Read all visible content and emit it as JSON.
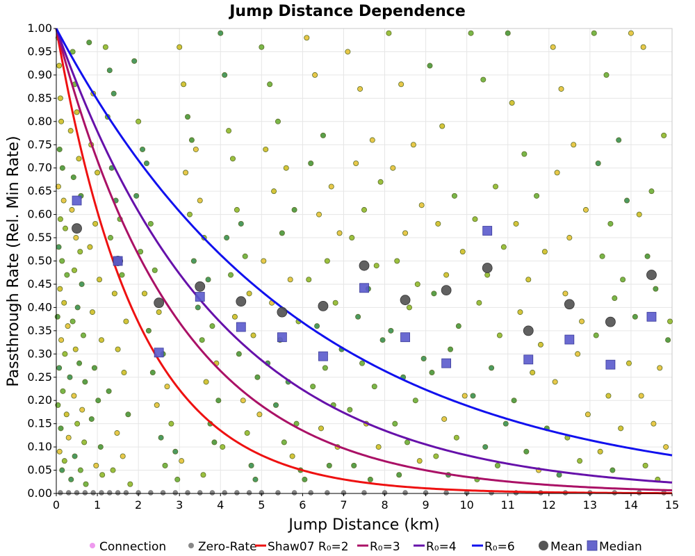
{
  "chart_data": {
    "type": "scatter",
    "title": "Jump Distance Dependence",
    "xlabel": "Jump Distance (km)",
    "ylabel": "Passthrough Rate (Rel. Min Rate)",
    "xlim": [
      0,
      15
    ],
    "ylim": [
      0,
      1
    ],
    "xticks": [
      0,
      1,
      2,
      3,
      4,
      5,
      6,
      7,
      8,
      9,
      10,
      11,
      12,
      13,
      14,
      15
    ],
    "xtick_labels": [
      "0",
      "1",
      "2",
      "3",
      "4",
      "5",
      "6",
      "7",
      "8",
      "9",
      "10",
      "11",
      "12",
      "13",
      "14",
      "15"
    ],
    "yticks": [
      0,
      0.05,
      0.1,
      0.15,
      0.2,
      0.25,
      0.3,
      0.35,
      0.4,
      0.45,
      0.5,
      0.55,
      0.6,
      0.65,
      0.7,
      0.75,
      0.8,
      0.85,
      0.9,
      0.95,
      1.0
    ],
    "ytick_labels": [
      "0.00",
      "0.05",
      "0.10",
      "0.15",
      "0.20",
      "0.25",
      "0.30",
      "0.35",
      "0.40",
      "0.45",
      "0.50",
      "0.55",
      "0.60",
      "0.65",
      "0.70",
      "0.75",
      "0.80",
      "0.85",
      "0.90",
      "0.95",
      "1.00"
    ],
    "grid": true,
    "legend_position": "bottom",
    "legend": [
      {
        "label": "Connection",
        "kind": "dot",
        "color": "#ee99ee"
      },
      {
        "label": "Zero-Rate",
        "kind": "dot",
        "color": "#888888"
      },
      {
        "label": "Shaw07 R₀=2",
        "kind": "line",
        "color": "#ee1111"
      },
      {
        "label": "R₀=3",
        "kind": "line",
        "color": "#aa1166"
      },
      {
        "label": "R₀=4",
        "kind": "line",
        "color": "#6611aa"
      },
      {
        "label": "R₀=6",
        "kind": "line",
        "color": "#1111ee"
      },
      {
        "label": "Mean",
        "kind": "circle",
        "color": "#555555"
      },
      {
        "label": "Median",
        "kind": "square",
        "color": "#6666cc"
      }
    ],
    "curves": [
      {
        "name": "Shaw07 R₀=2",
        "R0": 2,
        "color": "#ee1111",
        "formula": "exp(-x/R0)"
      },
      {
        "name": "R₀=3",
        "R0": 3,
        "color": "#aa1166",
        "formula": "exp(-x/R0)"
      },
      {
        "name": "R₀=4",
        "R0": 4,
        "color": "#6611aa",
        "formula": "exp(-x/R0)"
      },
      {
        "name": "R₀=6",
        "R0": 6,
        "color": "#1111ee",
        "formula": "exp(-x/R0)"
      }
    ],
    "mean": {
      "x": [
        0.5,
        1.5,
        2.5,
        3.5,
        4.5,
        5.5,
        6.5,
        7.5,
        8.5,
        9.5,
        10.5,
        11.5,
        12.5,
        13.5,
        14.5
      ],
      "y": [
        0.57,
        0.5,
        0.41,
        0.445,
        0.413,
        0.39,
        0.403,
        0.49,
        0.416,
        0.437,
        0.485,
        0.35,
        0.407,
        0.369,
        0.47
      ]
    },
    "median": {
      "x": [
        0.5,
        1.5,
        2.5,
        3.5,
        4.5,
        5.5,
        6.5,
        7.5,
        8.5,
        9.5,
        10.5,
        11.5,
        12.5,
        13.5,
        14.5
      ],
      "y": [
        0.63,
        0.5,
        0.303,
        0.423,
        0.358,
        0.336,
        0.295,
        0.442,
        0.336,
        0.28,
        0.565,
        0.288,
        0.331,
        0.277,
        0.38
      ]
    },
    "connection_points": [
      [
        0.05,
        0.98
      ],
      [
        0.07,
        0.92
      ],
      [
        0.1,
        0.85
      ],
      [
        0.12,
        0.8
      ],
      [
        0.08,
        0.74
      ],
      [
        0.15,
        0.7
      ],
      [
        0.05,
        0.66
      ],
      [
        0.18,
        0.63
      ],
      [
        0.1,
        0.59
      ],
      [
        0.22,
        0.57
      ],
      [
        0.06,
        0.53
      ],
      [
        0.14,
        0.5
      ],
      [
        0.26,
        0.47
      ],
      [
        0.09,
        0.44
      ],
      [
        0.19,
        0.41
      ],
      [
        0.03,
        0.38
      ],
      [
        0.28,
        0.36
      ],
      [
        0.12,
        0.33
      ],
      [
        0.21,
        0.3
      ],
      [
        0.07,
        0.27
      ],
      [
        0.33,
        0.25
      ],
      [
        0.16,
        0.22
      ],
      [
        0.04,
        0.19
      ],
      [
        0.25,
        0.17
      ],
      [
        0.11,
        0.14
      ],
      [
        0.3,
        0.12
      ],
      [
        0.08,
        0.09
      ],
      [
        0.2,
        0.07
      ],
      [
        0.14,
        0.05
      ],
      [
        0.36,
        0.03
      ],
      [
        0.4,
        0.95
      ],
      [
        0.45,
        0.88
      ],
      [
        0.5,
        0.82
      ],
      [
        0.35,
        0.78
      ],
      [
        0.55,
        0.72
      ],
      [
        0.42,
        0.68
      ],
      [
        0.6,
        0.64
      ],
      [
        0.38,
        0.61
      ],
      [
        0.48,
        0.55
      ],
      [
        0.58,
        0.52
      ],
      [
        0.44,
        0.48
      ],
      [
        0.62,
        0.45
      ],
      [
        0.52,
        0.4
      ],
      [
        0.4,
        0.37
      ],
      [
        0.66,
        0.34
      ],
      [
        0.47,
        0.31
      ],
      [
        0.56,
        0.28
      ],
      [
        0.7,
        0.24
      ],
      [
        0.43,
        0.21
      ],
      [
        0.63,
        0.18
      ],
      [
        0.51,
        0.15
      ],
      [
        0.68,
        0.11
      ],
      [
        0.45,
        0.08
      ],
      [
        0.59,
        0.05
      ],
      [
        0.72,
        0.02
      ],
      [
        0.8,
        0.97
      ],
      [
        0.9,
        0.86
      ],
      [
        0.85,
        0.75
      ],
      [
        1.0,
        0.69
      ],
      [
        0.95,
        0.58
      ],
      [
        0.82,
        0.53
      ],
      [
        1.05,
        0.46
      ],
      [
        0.88,
        0.39
      ],
      [
        1.1,
        0.33
      ],
      [
        0.93,
        0.27
      ],
      [
        1.02,
        0.2
      ],
      [
        0.86,
        0.16
      ],
      [
        1.08,
        0.1
      ],
      [
        0.97,
        0.06
      ],
      [
        1.12,
        0.04
      ],
      [
        1.2,
        0.96
      ],
      [
        1.3,
        0.91
      ],
      [
        1.4,
        0.86
      ],
      [
        1.25,
        0.81
      ],
      [
        1.35,
        0.7
      ],
      [
        1.45,
        0.63
      ],
      [
        1.55,
        0.59
      ],
      [
        1.32,
        0.55
      ],
      [
        1.6,
        0.47
      ],
      [
        1.42,
        0.43
      ],
      [
        1.7,
        0.37
      ],
      [
        1.5,
        0.31
      ],
      [
        1.65,
        0.26
      ],
      [
        1.28,
        0.22
      ],
      [
        1.75,
        0.17
      ],
      [
        1.48,
        0.13
      ],
      [
        1.62,
        0.08
      ],
      [
        1.38,
        0.05
      ],
      [
        1.8,
        0.02
      ],
      [
        1.9,
        0.93
      ],
      [
        2.0,
        0.8
      ],
      [
        2.1,
        0.74
      ],
      [
        2.2,
        0.71
      ],
      [
        1.95,
        0.64
      ],
      [
        2.3,
        0.58
      ],
      [
        2.05,
        0.52
      ],
      [
        2.4,
        0.48
      ],
      [
        2.15,
        0.43
      ],
      [
        2.5,
        0.39
      ],
      [
        2.25,
        0.35
      ],
      [
        2.6,
        0.3
      ],
      [
        2.35,
        0.26
      ],
      [
        2.7,
        0.23
      ],
      [
        2.45,
        0.19
      ],
      [
        2.8,
        0.15
      ],
      [
        2.55,
        0.12
      ],
      [
        2.9,
        0.09
      ],
      [
        2.65,
        0.06
      ],
      [
        2.95,
        0.03
      ],
      [
        3.0,
        0.96
      ],
      [
        3.1,
        0.88
      ],
      [
        3.2,
        0.81
      ],
      [
        3.3,
        0.76
      ],
      [
        3.4,
        0.74
      ],
      [
        3.15,
        0.69
      ],
      [
        3.5,
        0.63
      ],
      [
        3.25,
        0.6
      ],
      [
        3.6,
        0.55
      ],
      [
        3.35,
        0.5
      ],
      [
        3.7,
        0.46
      ],
      [
        3.45,
        0.4
      ],
      [
        3.8,
        0.36
      ],
      [
        3.55,
        0.33
      ],
      [
        3.9,
        0.28
      ],
      [
        3.65,
        0.24
      ],
      [
        3.95,
        0.2
      ],
      [
        3.75,
        0.15
      ],
      [
        3.85,
        0.11
      ],
      [
        3.05,
        0.07
      ],
      [
        3.58,
        0.04
      ],
      [
        4.0,
        0.99
      ],
      [
        4.1,
        0.9
      ],
      [
        4.2,
        0.78
      ],
      [
        4.3,
        0.72
      ],
      [
        4.4,
        0.61
      ],
      [
        4.5,
        0.58
      ],
      [
        4.15,
        0.55
      ],
      [
        4.6,
        0.51
      ],
      [
        4.25,
        0.47
      ],
      [
        4.7,
        0.43
      ],
      [
        4.35,
        0.38
      ],
      [
        4.8,
        0.34
      ],
      [
        4.45,
        0.3
      ],
      [
        4.9,
        0.25
      ],
      [
        4.55,
        0.2
      ],
      [
        4.95,
        0.17
      ],
      [
        4.65,
        0.13
      ],
      [
        4.05,
        0.1
      ],
      [
        4.75,
        0.06
      ],
      [
        4.85,
        0.03
      ],
      [
        5.0,
        0.96
      ],
      [
        5.2,
        0.88
      ],
      [
        5.4,
        0.8
      ],
      [
        5.1,
        0.74
      ],
      [
        5.6,
        0.7
      ],
      [
        5.3,
        0.65
      ],
      [
        5.8,
        0.61
      ],
      [
        5.5,
        0.56
      ],
      [
        5.05,
        0.5
      ],
      [
        5.7,
        0.46
      ],
      [
        5.25,
        0.41
      ],
      [
        5.9,
        0.37
      ],
      [
        5.45,
        0.33
      ],
      [
        5.15,
        0.28
      ],
      [
        5.65,
        0.24
      ],
      [
        5.35,
        0.19
      ],
      [
        5.85,
        0.15
      ],
      [
        5.55,
        0.11
      ],
      [
        5.75,
        0.08
      ],
      [
        5.95,
        0.05
      ],
      [
        6.1,
        0.98
      ],
      [
        6.3,
        0.9
      ],
      [
        6.5,
        0.77
      ],
      [
        6.2,
        0.71
      ],
      [
        6.7,
        0.66
      ],
      [
        6.4,
        0.6
      ],
      [
        6.9,
        0.56
      ],
      [
        6.6,
        0.5
      ],
      [
        6.15,
        0.46
      ],
      [
        6.8,
        0.41
      ],
      [
        6.35,
        0.36
      ],
      [
        6.95,
        0.31
      ],
      [
        6.55,
        0.27
      ],
      [
        6.25,
        0.23
      ],
      [
        6.75,
        0.19
      ],
      [
        6.45,
        0.14
      ],
      [
        6.85,
        0.1
      ],
      [
        6.65,
        0.06
      ],
      [
        6.05,
        0.03
      ],
      [
        7.1,
        0.95
      ],
      [
        7.4,
        0.87
      ],
      [
        7.7,
        0.76
      ],
      [
        7.3,
        0.71
      ],
      [
        7.9,
        0.67
      ],
      [
        7.5,
        0.61
      ],
      [
        7.2,
        0.55
      ],
      [
        7.8,
        0.49
      ],
      [
        7.6,
        0.44
      ],
      [
        7.35,
        0.38
      ],
      [
        7.95,
        0.33
      ],
      [
        7.45,
        0.28
      ],
      [
        7.75,
        0.23
      ],
      [
        7.15,
        0.18
      ],
      [
        7.55,
        0.15
      ],
      [
        7.85,
        0.1
      ],
      [
        7.25,
        0.06
      ],
      [
        7.65,
        0.03
      ],
      [
        8.1,
        0.99
      ],
      [
        8.4,
        0.88
      ],
      [
        8.7,
        0.75
      ],
      [
        8.2,
        0.7
      ],
      [
        8.9,
        0.62
      ],
      [
        8.5,
        0.56
      ],
      [
        8.3,
        0.5
      ],
      [
        8.8,
        0.45
      ],
      [
        8.6,
        0.4
      ],
      [
        8.15,
        0.35
      ],
      [
        8.95,
        0.29
      ],
      [
        8.45,
        0.25
      ],
      [
        8.75,
        0.2
      ],
      [
        8.25,
        0.15
      ],
      [
        8.55,
        0.11
      ],
      [
        8.85,
        0.07
      ],
      [
        8.35,
        0.04
      ],
      [
        9.1,
        0.92
      ],
      [
        9.4,
        0.79
      ],
      [
        9.7,
        0.64
      ],
      [
        9.3,
        0.58
      ],
      [
        9.9,
        0.52
      ],
      [
        9.5,
        0.47
      ],
      [
        9.2,
        0.43
      ],
      [
        9.8,
        0.36
      ],
      [
        9.6,
        0.31
      ],
      [
        9.15,
        0.26
      ],
      [
        9.95,
        0.21
      ],
      [
        9.45,
        0.16
      ],
      [
        9.75,
        0.12
      ],
      [
        9.25,
        0.08
      ],
      [
        9.55,
        0.04
      ],
      [
        10.1,
        0.99
      ],
      [
        10.4,
        0.89
      ],
      [
        10.7,
        0.66
      ],
      [
        10.2,
        0.59
      ],
      [
        10.9,
        0.53
      ],
      [
        10.5,
        0.47
      ],
      [
        10.3,
        0.41
      ],
      [
        10.8,
        0.34
      ],
      [
        10.6,
        0.27
      ],
      [
        10.15,
        0.21
      ],
      [
        10.95,
        0.15
      ],
      [
        10.45,
        0.1
      ],
      [
        10.75,
        0.06
      ],
      [
        10.25,
        0.03
      ],
      [
        11.0,
        0.99
      ],
      [
        11.1,
        0.84
      ],
      [
        11.4,
        0.73
      ],
      [
        11.7,
        0.64
      ],
      [
        11.2,
        0.58
      ],
      [
        11.9,
        0.52
      ],
      [
        11.5,
        0.46
      ],
      [
        11.3,
        0.39
      ],
      [
        11.8,
        0.32
      ],
      [
        11.6,
        0.26
      ],
      [
        11.15,
        0.2
      ],
      [
        11.95,
        0.14
      ],
      [
        11.45,
        0.09
      ],
      [
        11.75,
        0.05
      ],
      [
        12.1,
        0.96
      ],
      [
        12.3,
        0.87
      ],
      [
        12.6,
        0.75
      ],
      [
        12.2,
        0.69
      ],
      [
        12.9,
        0.61
      ],
      [
        12.5,
        0.55
      ],
      [
        12.4,
        0.43
      ],
      [
        12.8,
        0.37
      ],
      [
        12.7,
        0.3
      ],
      [
        12.15,
        0.24
      ],
      [
        12.95,
        0.17
      ],
      [
        12.45,
        0.12
      ],
      [
        12.75,
        0.07
      ],
      [
        12.25,
        0.04
      ],
      [
        13.1,
        0.99
      ],
      [
        13.4,
        0.9
      ],
      [
        13.7,
        0.76
      ],
      [
        13.2,
        0.71
      ],
      [
        13.9,
        0.63
      ],
      [
        13.5,
        0.58
      ],
      [
        13.3,
        0.51
      ],
      [
        13.8,
        0.46
      ],
      [
        13.6,
        0.42
      ],
      [
        13.15,
        0.34
      ],
      [
        13.95,
        0.28
      ],
      [
        13.45,
        0.21
      ],
      [
        13.75,
        0.14
      ],
      [
        13.25,
        0.09
      ],
      [
        13.55,
        0.05
      ],
      [
        14.0,
        0.99
      ],
      [
        14.3,
        0.96
      ],
      [
        14.5,
        0.65
      ],
      [
        14.2,
        0.6
      ],
      [
        14.8,
        0.77
      ],
      [
        14.4,
        0.51
      ],
      [
        14.6,
        0.44
      ],
      [
        14.1,
        0.38
      ],
      [
        14.9,
        0.33
      ],
      [
        14.7,
        0.27
      ],
      [
        14.25,
        0.21
      ],
      [
        14.55,
        0.15
      ],
      [
        14.85,
        0.1
      ],
      [
        14.35,
        0.06
      ],
      [
        14.65,
        0.03
      ],
      [
        14.95,
        0.37
      ]
    ],
    "zero_rate_points": [
      [
        0.1,
        0
      ],
      [
        0.3,
        0
      ],
      [
        0.5,
        0
      ],
      [
        0.7,
        0
      ],
      [
        0.9,
        0
      ],
      [
        1.1,
        0
      ],
      [
        1.3,
        0
      ],
      [
        1.5,
        0
      ],
      [
        1.7,
        0
      ],
      [
        2.0,
        0
      ],
      [
        2.3,
        0
      ],
      [
        2.6,
        0
      ],
      [
        2.9,
        0
      ],
      [
        3.2,
        0
      ],
      [
        3.5,
        0
      ],
      [
        3.8,
        0
      ],
      [
        4.1,
        0
      ],
      [
        4.4,
        0
      ],
      [
        4.7,
        0
      ],
      [
        5.0,
        0
      ],
      [
        5.4,
        0
      ],
      [
        5.8,
        0
      ],
      [
        6.2,
        0
      ],
      [
        6.6,
        0
      ],
      [
        7.0,
        0
      ],
      [
        7.5,
        0
      ],
      [
        8.0,
        0
      ],
      [
        8.5,
        0
      ],
      [
        9.0,
        0
      ],
      [
        9.5,
        0
      ],
      [
        10.0,
        0
      ],
      [
        10.6,
        0
      ],
      [
        11.2,
        0
      ],
      [
        11.8,
        0
      ],
      [
        12.4,
        0
      ],
      [
        13.0,
        0
      ],
      [
        13.6,
        0
      ],
      [
        14.2,
        0
      ],
      [
        14.8,
        0
      ]
    ]
  }
}
